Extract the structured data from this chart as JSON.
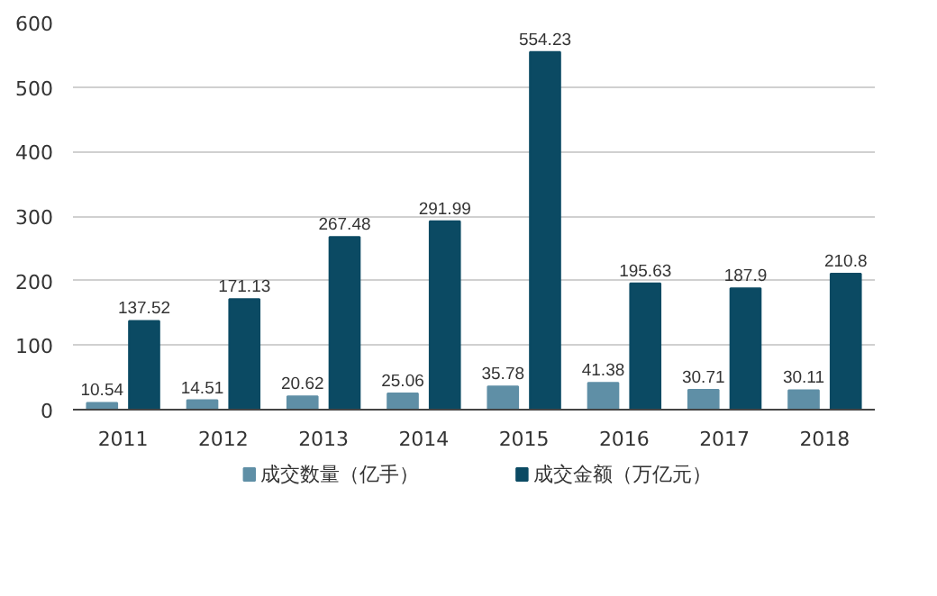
{
  "chart_data": {
    "type": "bar",
    "categories": [
      "2011",
      "2012",
      "2013",
      "2014",
      "2015",
      "2016",
      "2017",
      "2018"
    ],
    "series": [
      {
        "name": "成交数量（亿手）",
        "color": "#5f8fa6",
        "values": [
          10.54,
          14.51,
          20.62,
          25.06,
          35.78,
          41.38,
          30.71,
          30.11
        ]
      },
      {
        "name": "成交金额（万亿元）",
        "color": "#0b4a63",
        "values": [
          137.52,
          171.13,
          267.48,
          291.99,
          554.23,
          195.63,
          187.9,
          210.8
        ]
      }
    ],
    "ylim": [
      0,
      600
    ],
    "yticks": [
      0,
      100,
      200,
      300,
      400,
      500,
      600
    ],
    "grid": "y",
    "legend": "bottom",
    "data_labels": true
  }
}
